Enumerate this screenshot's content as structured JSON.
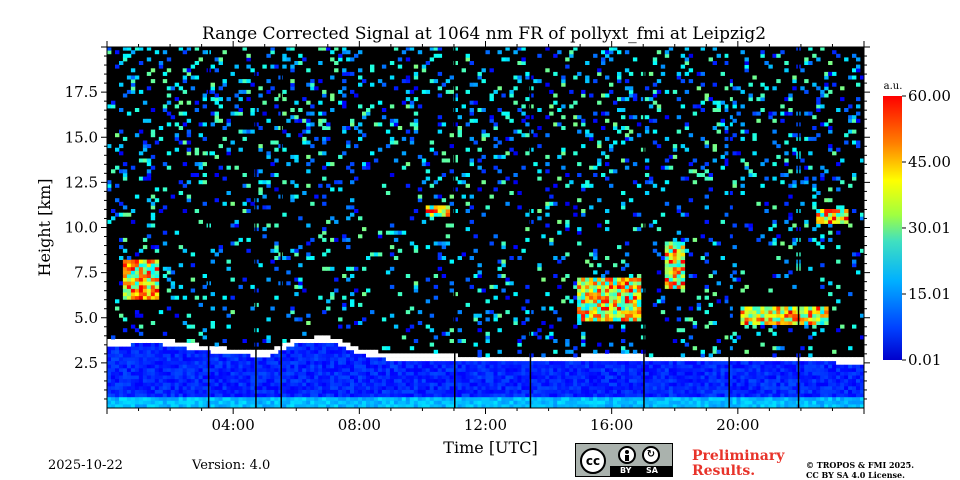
{
  "chart_data": {
    "type": "heatmap",
    "title": "Range Corrected Signal at 1064 nm FR of pollyxt_fmi at Leipzig2",
    "xlabel": "Time [UTC]",
    "ylabel": "Height [km]",
    "x_unit": "hours UTC",
    "xlim": [
      0,
      24
    ],
    "ylim": [
      0,
      20
    ],
    "x_ticks": [
      4,
      8,
      12,
      16,
      20
    ],
    "x_tick_labels": [
      "04:00",
      "08:00",
      "12:00",
      "16:00",
      "20:00"
    ],
    "y_ticks": [
      2.5,
      5.0,
      7.5,
      10.0,
      12.5,
      15.0,
      17.5
    ],
    "y_tick_labels": [
      "2.5",
      "5.0",
      "7.5",
      "10.0",
      "12.5",
      "15.0",
      "17.5"
    ],
    "colorbar": {
      "label": "a.u.",
      "range": [
        0.01,
        60.0
      ],
      "ticks": [
        0.01,
        15.01,
        30.01,
        45.0,
        60.0
      ],
      "tick_labels": [
        "0.01",
        "15.01",
        "30.01",
        "45.00",
        "60.00"
      ],
      "colormap": "jet"
    },
    "features": {
      "boundary_layer_top_km": [
        [
          0.0,
          3.5
        ],
        [
          1.5,
          3.6
        ],
        [
          3.0,
          3.2
        ],
        [
          4.0,
          3.0
        ],
        [
          5.0,
          2.9
        ],
        [
          6.0,
          3.6
        ],
        [
          7.0,
          3.7
        ],
        [
          8.0,
          3.0
        ],
        [
          9.0,
          2.7
        ],
        [
          10.0,
          2.7
        ],
        [
          12.0,
          2.6
        ],
        [
          14.0,
          2.6
        ],
        [
          16.0,
          2.7
        ],
        [
          18.0,
          2.6
        ],
        [
          20.0,
          2.6
        ],
        [
          22.0,
          2.6
        ],
        [
          24.0,
          2.5
        ]
      ],
      "cloud_layers": [
        {
          "t_start": 0.5,
          "t_end": 1.6,
          "z_bottom": 6.0,
          "z_top": 8.0
        },
        {
          "t_start": 10.0,
          "t_end": 10.8,
          "z_bottom": 10.5,
          "z_top": 11.2
        },
        {
          "t_start": 14.9,
          "t_end": 16.8,
          "z_bottom": 4.8,
          "z_top": 7.0
        },
        {
          "t_start": 17.6,
          "t_end": 18.2,
          "z_bottom": 6.5,
          "z_top": 9.0
        },
        {
          "t_start": 22.4,
          "t_end": 23.4,
          "z_bottom": 10.2,
          "z_top": 10.9
        },
        {
          "t_start": 20.0,
          "t_end": 22.8,
          "z_bottom": 4.6,
          "z_top": 5.4
        }
      ],
      "missing_data_gaps_h": [
        3.2,
        4.7,
        5.5,
        11.0,
        13.4,
        17.0,
        19.7,
        21.9
      ]
    }
  },
  "footer": {
    "date": "2025-10-22",
    "version": "Version: 4.0",
    "preliminary_line1": "Preliminary",
    "preliminary_line2": "Results.",
    "copyright_line1": "© TROPOS & FMI 2025.",
    "copyright_line2": "CC BY SA 4.0 License.",
    "license_badge": {
      "cc": "cc",
      "by": "BY",
      "sa": "SA"
    }
  },
  "colors": {
    "background_sky": "#000000",
    "accent_red": "#e8332a"
  }
}
